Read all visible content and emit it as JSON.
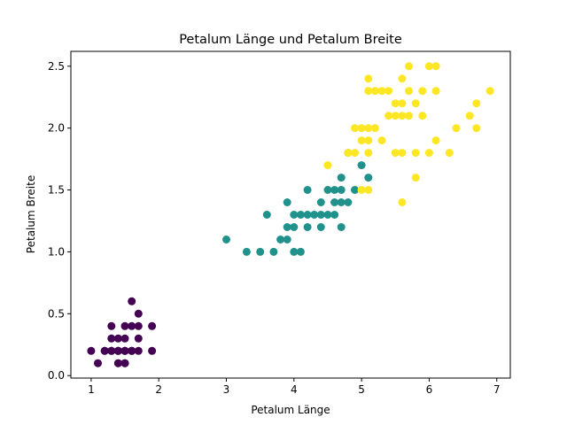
{
  "chart_data": {
    "type": "scatter",
    "title": "Petalum Länge und Petalum Breite",
    "xlabel": "Petalum Länge",
    "ylabel": "Petalum Breite",
    "xlim": [
      0.7,
      7.2
    ],
    "ylim": [
      -0.02,
      2.62
    ],
    "x_ticks": [
      1,
      2,
      3,
      4,
      5,
      6,
      7
    ],
    "y_ticks": [
      0.0,
      0.5,
      1.0,
      1.5,
      2.0,
      2.5
    ],
    "x_tick_labels": [
      "1",
      "2",
      "3",
      "4",
      "5",
      "6",
      "7"
    ],
    "y_tick_labels": [
      "0.0",
      "0.5",
      "1.0",
      "1.5",
      "2.0",
      "2.5"
    ],
    "grid": false,
    "series": [
      {
        "color": "#440154",
        "points": [
          [
            1.0,
            0.2
          ],
          [
            1.1,
            0.1
          ],
          [
            1.2,
            0.2
          ],
          [
            1.2,
            0.2
          ],
          [
            1.3,
            0.2
          ],
          [
            1.3,
            0.3
          ],
          [
            1.3,
            0.4
          ],
          [
            1.3,
            0.2
          ],
          [
            1.4,
            0.2
          ],
          [
            1.4,
            0.1
          ],
          [
            1.4,
            0.3
          ],
          [
            1.4,
            0.2
          ],
          [
            1.4,
            0.2
          ],
          [
            1.4,
            0.1
          ],
          [
            1.5,
            0.2
          ],
          [
            1.5,
            0.1
          ],
          [
            1.5,
            0.4
          ],
          [
            1.5,
            0.3
          ],
          [
            1.5,
            0.2
          ],
          [
            1.5,
            0.1
          ],
          [
            1.5,
            0.2
          ],
          [
            1.6,
            0.2
          ],
          [
            1.6,
            0.6
          ],
          [
            1.6,
            0.4
          ],
          [
            1.6,
            0.2
          ],
          [
            1.6,
            0.2
          ],
          [
            1.7,
            0.4
          ],
          [
            1.7,
            0.3
          ],
          [
            1.7,
            0.5
          ],
          [
            1.7,
            0.2
          ],
          [
            1.9,
            0.2
          ],
          [
            1.9,
            0.4
          ]
        ]
      },
      {
        "color": "#21918c",
        "points": [
          [
            3.0,
            1.1
          ],
          [
            3.3,
            1.0
          ],
          [
            3.5,
            1.0
          ],
          [
            3.6,
            1.3
          ],
          [
            3.7,
            1.0
          ],
          [
            3.8,
            1.1
          ],
          [
            3.9,
            1.1
          ],
          [
            3.9,
            1.2
          ],
          [
            3.9,
            1.4
          ],
          [
            4.0,
            1.0
          ],
          [
            4.0,
            1.2
          ],
          [
            4.0,
            1.3
          ],
          [
            4.1,
            1.0
          ],
          [
            4.1,
            1.3
          ],
          [
            4.2,
            1.2
          ],
          [
            4.2,
            1.3
          ],
          [
            4.2,
            1.5
          ],
          [
            4.3,
            1.3
          ],
          [
            4.4,
            1.2
          ],
          [
            4.4,
            1.3
          ],
          [
            4.4,
            1.4
          ],
          [
            4.5,
            1.3
          ],
          [
            4.5,
            1.5
          ],
          [
            4.6,
            1.3
          ],
          [
            4.6,
            1.4
          ],
          [
            4.6,
            1.5
          ],
          [
            4.7,
            1.2
          ],
          [
            4.7,
            1.4
          ],
          [
            4.7,
            1.5
          ],
          [
            4.7,
            1.6
          ],
          [
            4.8,
            1.4
          ],
          [
            4.8,
            1.8
          ],
          [
            4.9,
            1.5
          ],
          [
            5.0,
            1.7
          ],
          [
            5.1,
            1.6
          ]
        ]
      },
      {
        "color": "#fde725",
        "points": [
          [
            4.5,
            1.7
          ],
          [
            4.8,
            1.8
          ],
          [
            4.9,
            1.8
          ],
          [
            4.9,
            2.0
          ],
          [
            5.0,
            1.5
          ],
          [
            5.0,
            1.9
          ],
          [
            5.0,
            2.0
          ],
          [
            5.1,
            1.5
          ],
          [
            5.1,
            1.8
          ],
          [
            5.1,
            1.9
          ],
          [
            5.1,
            2.0
          ],
          [
            5.1,
            2.3
          ],
          [
            5.1,
            2.4
          ],
          [
            5.2,
            2.0
          ],
          [
            5.2,
            2.3
          ],
          [
            5.3,
            1.9
          ],
          [
            5.3,
            2.3
          ],
          [
            5.4,
            2.1
          ],
          [
            5.4,
            2.3
          ],
          [
            5.5,
            1.8
          ],
          [
            5.5,
            2.1
          ],
          [
            5.5,
            2.2
          ],
          [
            5.6,
            1.4
          ],
          [
            5.6,
            1.8
          ],
          [
            5.6,
            2.1
          ],
          [
            5.6,
            2.2
          ],
          [
            5.6,
            2.4
          ],
          [
            5.7,
            2.1
          ],
          [
            5.7,
            2.3
          ],
          [
            5.7,
            2.5
          ],
          [
            5.8,
            1.6
          ],
          [
            5.8,
            1.8
          ],
          [
            5.8,
            2.2
          ],
          [
            5.9,
            2.1
          ],
          [
            5.9,
            2.3
          ],
          [
            6.0,
            1.8
          ],
          [
            6.0,
            2.5
          ],
          [
            6.1,
            1.9
          ],
          [
            6.1,
            2.3
          ],
          [
            6.1,
            2.5
          ],
          [
            6.3,
            1.8
          ],
          [
            6.4,
            2.0
          ],
          [
            6.6,
            2.1
          ],
          [
            6.7,
            2.0
          ],
          [
            6.7,
            2.2
          ],
          [
            6.9,
            2.3
          ]
        ]
      }
    ]
  }
}
